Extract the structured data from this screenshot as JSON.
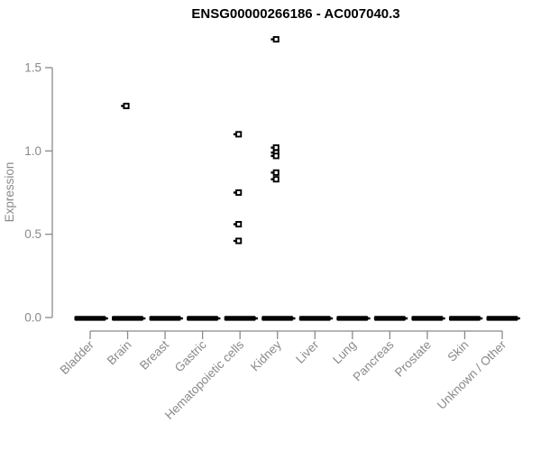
{
  "figure": {
    "background": "#ffffff"
  },
  "chart_data": {
    "type": "scatter",
    "title": "ENSG00000266186 - AC007040.3",
    "ylabel": "Expression",
    "xlabel": "",
    "ylim": [
      0,
      1.7
    ],
    "ytick_labels": [
      "0.0",
      "0.5",
      "1.0",
      "1.5"
    ],
    "ytick_values": [
      0,
      0.5,
      1.0,
      1.5
    ],
    "categories": [
      "Bladder",
      "Brain",
      "Breast",
      "Gastric",
      "Hematopoietic cells",
      "Kidney",
      "Liver",
      "Lung",
      "Pancreas",
      "Prostate",
      "Skin",
      "Unknown / Other"
    ],
    "grid": false,
    "legend": null,
    "zero_baseline": {
      "value": 0,
      "present_in_every_category": true,
      "note": "dense overlap of samples at expression 0 rendered as a thick black dash per category"
    },
    "points": [
      {
        "category": "Brain",
        "value": 1.27
      },
      {
        "category": "Hematopoietic cells",
        "value": 1.1
      },
      {
        "category": "Hematopoietic cells",
        "value": 0.75
      },
      {
        "category": "Hematopoietic cells",
        "value": 0.56
      },
      {
        "category": "Hematopoietic cells",
        "value": 0.46
      },
      {
        "category": "Kidney",
        "value": 1.67
      },
      {
        "category": "Kidney",
        "value": 1.02
      },
      {
        "category": "Kidney",
        "value": 0.99
      },
      {
        "category": "Kidney",
        "value": 0.97
      },
      {
        "category": "Kidney",
        "value": 0.87
      },
      {
        "category": "Kidney",
        "value": 0.83
      }
    ],
    "colors": {
      "title": "#000000",
      "axis_line": "#8a8a8a",
      "tick_label": "#898989",
      "axis_label": "#898989",
      "point_stroke": "#000000",
      "point_fill": "#ffffff",
      "zero_dash": "#000000"
    }
  }
}
